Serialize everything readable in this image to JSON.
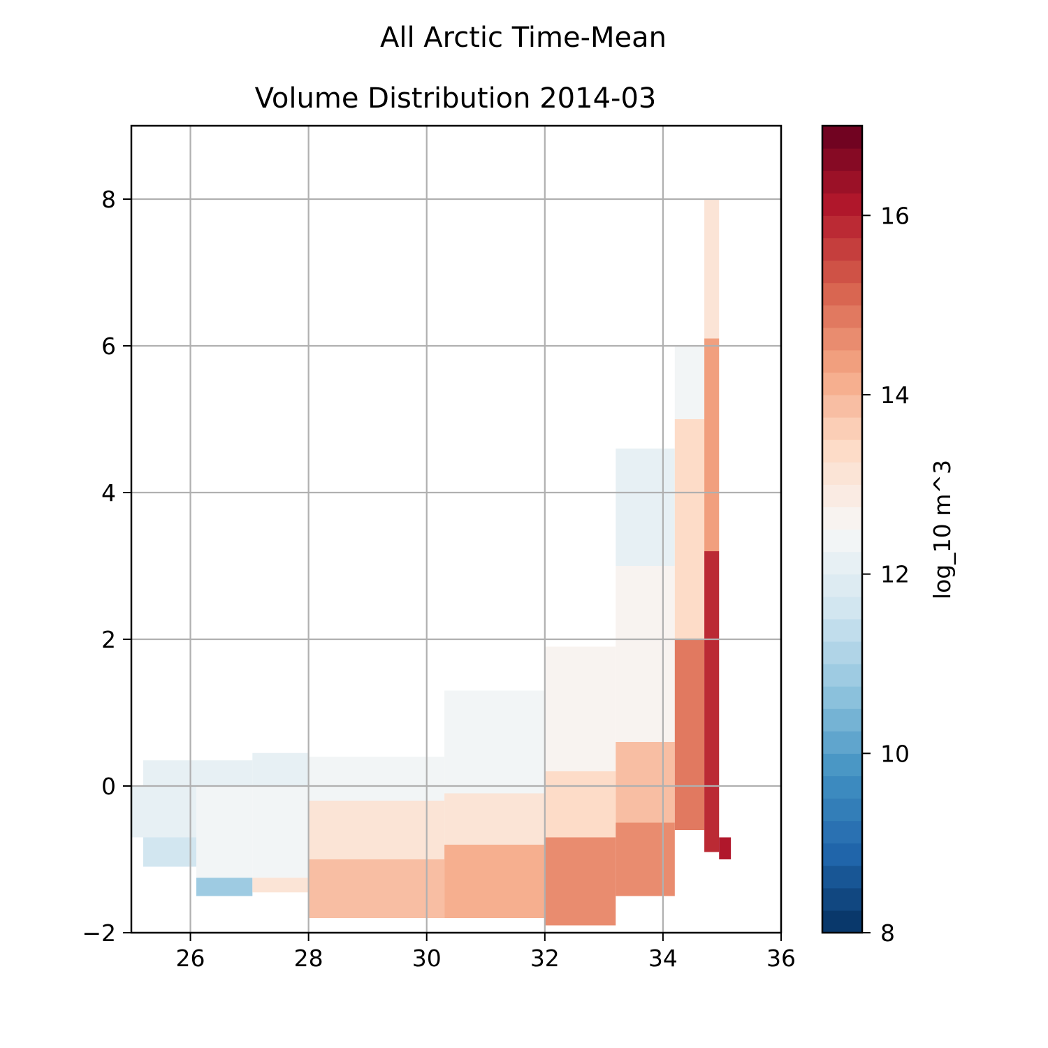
{
  "chart_data": {
    "type": "heatmap",
    "suptitle": "All Arctic Time-Mean",
    "title": "Volume Distribution 2014-03",
    "xlabel": "",
    "ylabel": "",
    "xlim": [
      25,
      36
    ],
    "ylim": [
      -2,
      9
    ],
    "xticks": [
      26,
      28,
      30,
      32,
      34,
      36
    ],
    "yticks": [
      -2,
      0,
      2,
      4,
      6,
      8
    ],
    "grid": true,
    "colorbar": {
      "label": "log_10 m^3",
      "min": 8,
      "max": 17,
      "ticks": [
        8,
        10,
        12,
        14,
        16
      ],
      "colormap": "RdBu_r",
      "levels": 36
    },
    "regions": [
      {
        "x": [
          25.2,
          26.1
        ],
        "y": [
          0.0,
          0.35
        ],
        "v": 12.0
      },
      {
        "x": [
          26.1,
          27.05
        ],
        "y": [
          0.0,
          0.35
        ],
        "v": 12.0
      },
      {
        "x": [
          27.05,
          28.0
        ],
        "y": [
          0.0,
          0.45
        ],
        "v": 12.0
      },
      {
        "x": [
          25.0,
          26.1
        ],
        "y": [
          -0.7,
          0.0
        ],
        "v": 12.2
      },
      {
        "x": [
          25.2,
          26.1
        ],
        "y": [
          -1.1,
          -0.7
        ],
        "v": 11.6
      },
      {
        "x": [
          26.1,
          27.05
        ],
        "y": [
          -1.5,
          -1.25
        ],
        "v": 10.8
      },
      {
        "x": [
          26.1,
          27.05
        ],
        "y": [
          -1.25,
          0.0
        ],
        "v": 12.3
      },
      {
        "x": [
          27.05,
          28.0
        ],
        "y": [
          -1.45,
          -1.25
        ],
        "v": 13.2
      },
      {
        "x": [
          27.05,
          28.0
        ],
        "y": [
          -1.25,
          0.0
        ],
        "v": 12.4
      },
      {
        "x": [
          28.0,
          30.3
        ],
        "y": [
          -1.8,
          -1.0
        ],
        "v": 13.9
      },
      {
        "x": [
          28.0,
          30.3
        ],
        "y": [
          -1.0,
          -0.2
        ],
        "v": 13.0
      },
      {
        "x": [
          28.0,
          30.3
        ],
        "y": [
          -0.2,
          0.4
        ],
        "v": 12.4
      },
      {
        "x": [
          30.3,
          32.0
        ],
        "y": [
          -1.8,
          -0.8
        ],
        "v": 14.2
      },
      {
        "x": [
          30.3,
          32.0
        ],
        "y": [
          -0.8,
          -0.1
        ],
        "v": 13.1
      },
      {
        "x": [
          30.3,
          32.0
        ],
        "y": [
          -0.1,
          1.3
        ],
        "v": 12.4
      },
      {
        "x": [
          32.0,
          33.2
        ],
        "y": [
          -1.9,
          -0.7
        ],
        "v": 14.6
      },
      {
        "x": [
          32.0,
          33.2
        ],
        "y": [
          -0.7,
          0.2
        ],
        "v": 13.3
      },
      {
        "x": [
          32.0,
          33.2
        ],
        "y": [
          0.2,
          1.9
        ],
        "v": 12.6
      },
      {
        "x": [
          33.2,
          34.2
        ],
        "y": [
          -1.5,
          -0.5
        ],
        "v": 14.6
      },
      {
        "x": [
          33.2,
          34.2
        ],
        "y": [
          -0.5,
          0.6
        ],
        "v": 13.8
      },
      {
        "x": [
          33.2,
          34.2
        ],
        "y": [
          0.6,
          3.0
        ],
        "v": 12.6
      },
      {
        "x": [
          33.2,
          34.2
        ],
        "y": [
          3.0,
          4.6
        ],
        "v": 12.0
      },
      {
        "x": [
          34.2,
          34.7
        ],
        "y": [
          -0.6,
          2.0
        ],
        "v": 14.8
      },
      {
        "x": [
          34.2,
          34.7
        ],
        "y": [
          2.0,
          5.0
        ],
        "v": 13.4
      },
      {
        "x": [
          34.2,
          34.7
        ],
        "y": [
          5.0,
          6.0
        ],
        "v": 12.4
      },
      {
        "x": [
          34.7,
          34.95
        ],
        "y": [
          -0.9,
          3.2
        ],
        "v": 15.8
      },
      {
        "x": [
          34.7,
          34.95
        ],
        "y": [
          3.2,
          6.1
        ],
        "v": 14.3
      },
      {
        "x": [
          34.7,
          34.95
        ],
        "y": [
          6.1,
          8.0
        ],
        "v": 13.0
      },
      {
        "x": [
          34.95,
          35.15
        ],
        "y": [
          -1.0,
          -0.7
        ],
        "v": 16.0
      }
    ]
  }
}
